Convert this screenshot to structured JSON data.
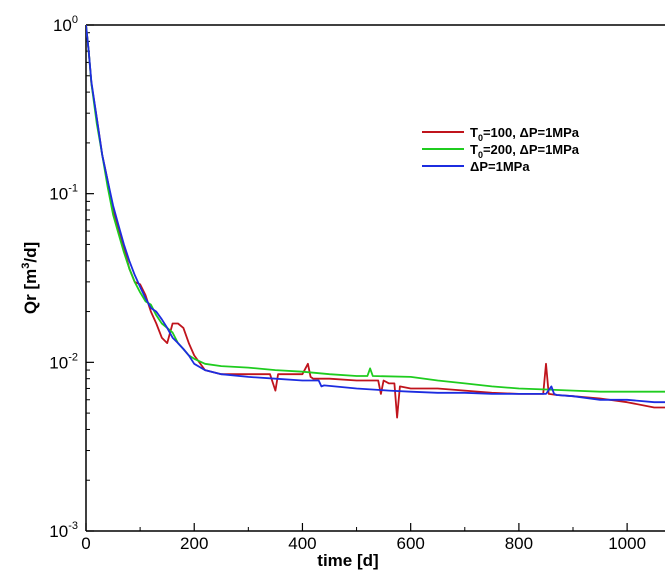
{
  "chart_data": {
    "type": "line",
    "title": "",
    "xlabel": "time [d]",
    "ylabel": "Qr [m3/d]",
    "ylabel_parts": {
      "main": "Qr [m",
      "sup": "3",
      "tail": "/d]"
    },
    "xscale": "linear",
    "yscale": "log",
    "xlim": [
      0,
      1070
    ],
    "ylim": [
      0.001,
      1
    ],
    "grid": false,
    "legend_position": "top-right",
    "x_ticks": [
      0,
      200,
      400,
      600,
      800,
      1000
    ],
    "x_tick_labels": [
      "0",
      "200",
      "400",
      "600",
      "800",
      "1000"
    ],
    "y_ticks": [
      0.001,
      0.01,
      0.1,
      1
    ],
    "y_tick_labels": [
      {
        "base": "10",
        "exp": "-3"
      },
      {
        "base": "10",
        "exp": "-2"
      },
      {
        "base": "10",
        "exp": "-1"
      },
      {
        "base": "10",
        "exp": "0"
      }
    ],
    "series": [
      {
        "name": "T0=100, ΔP=1MPa",
        "legend": {
          "pre": "T",
          "sub": "0",
          "post": "=100, ΔP=1MPa"
        },
        "color": "#c0141c",
        "x": [
          0,
          5,
          10,
          20,
          30,
          40,
          50,
          60,
          70,
          80,
          90,
          100,
          110,
          120,
          130,
          140,
          150,
          160,
          170,
          180,
          190,
          200,
          220,
          250,
          300,
          340,
          350,
          355,
          360,
          400,
          410,
          415,
          420,
          450,
          500,
          540,
          545,
          550,
          560,
          570,
          575,
          580,
          600,
          650,
          700,
          750,
          800,
          845,
          850,
          855,
          870,
          900,
          950,
          1000,
          1050,
          1070
        ],
        "y": [
          1.0,
          0.7,
          0.45,
          0.28,
          0.17,
          0.12,
          0.08,
          0.06,
          0.048,
          0.036,
          0.03,
          0.029,
          0.025,
          0.02,
          0.017,
          0.014,
          0.013,
          0.017,
          0.017,
          0.016,
          0.013,
          0.011,
          0.009,
          0.0085,
          0.0085,
          0.0085,
          0.0068,
          0.0085,
          0.0085,
          0.0085,
          0.0098,
          0.0082,
          0.008,
          0.008,
          0.0078,
          0.0078,
          0.0065,
          0.0078,
          0.0075,
          0.0075,
          0.0047,
          0.0072,
          0.007,
          0.007,
          0.0068,
          0.0066,
          0.0065,
          0.0065,
          0.0098,
          0.0065,
          0.0064,
          0.0063,
          0.0061,
          0.0058,
          0.0054,
          0.0054
        ]
      },
      {
        "name": "T0=200, ΔP=1MPa",
        "legend": {
          "pre": "T",
          "sub": "0",
          "post": "=200, ΔP=1MPa"
        },
        "color": "#1fcc1f",
        "x": [
          0,
          5,
          10,
          20,
          30,
          40,
          50,
          60,
          70,
          80,
          90,
          100,
          110,
          120,
          130,
          140,
          150,
          160,
          170,
          180,
          190,
          200,
          220,
          250,
          300,
          350,
          400,
          450,
          500,
          520,
          525,
          530,
          600,
          650,
          700,
          750,
          800,
          850,
          900,
          950,
          1000,
          1050,
          1070
        ],
        "y": [
          1.0,
          0.7,
          0.45,
          0.26,
          0.17,
          0.11,
          0.075,
          0.058,
          0.045,
          0.036,
          0.03,
          0.026,
          0.023,
          0.022,
          0.019,
          0.017,
          0.016,
          0.015,
          0.013,
          0.012,
          0.011,
          0.0105,
          0.0098,
          0.0095,
          0.0093,
          0.009,
          0.0088,
          0.0085,
          0.0083,
          0.0083,
          0.0092,
          0.0083,
          0.0082,
          0.0078,
          0.0075,
          0.0072,
          0.007,
          0.0069,
          0.0068,
          0.0067,
          0.0067,
          0.0067,
          0.0067
        ]
      },
      {
        "name": "ΔP=1MPa",
        "legend": {
          "pre": "",
          "sub": "",
          "post": "ΔP=1MPa"
        },
        "color": "#1c2ce0",
        "x": [
          0,
          5,
          10,
          20,
          30,
          40,
          50,
          60,
          70,
          80,
          90,
          100,
          110,
          120,
          130,
          140,
          150,
          160,
          170,
          180,
          190,
          200,
          220,
          250,
          300,
          350,
          400,
          430,
          435,
          440,
          500,
          560,
          600,
          650,
          700,
          750,
          800,
          850,
          860,
          865,
          870,
          900,
          950,
          1000,
          1050,
          1070
        ],
        "y": [
          1.0,
          0.7,
          0.46,
          0.28,
          0.17,
          0.12,
          0.085,
          0.065,
          0.05,
          0.04,
          0.033,
          0.028,
          0.024,
          0.021,
          0.02,
          0.018,
          0.016,
          0.014,
          0.013,
          0.012,
          0.011,
          0.0098,
          0.009,
          0.0085,
          0.0082,
          0.008,
          0.0078,
          0.0078,
          0.0072,
          0.0073,
          0.007,
          0.0068,
          0.0067,
          0.0066,
          0.0066,
          0.0065,
          0.0065,
          0.0065,
          0.0072,
          0.0065,
          0.0064,
          0.0063,
          0.006,
          0.006,
          0.0058,
          0.0058
        ]
      }
    ]
  }
}
